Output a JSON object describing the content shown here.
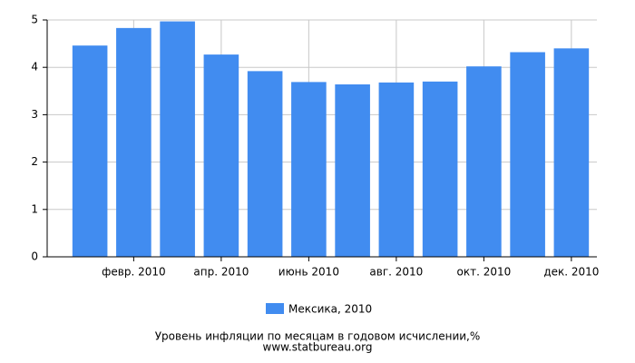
{
  "chart_data": {
    "type": "bar",
    "categories": [
      null,
      "февр. 2010",
      null,
      "апр. 2010",
      null,
      "июнь 2010",
      null,
      "авг. 2010",
      null,
      "окт. 2010",
      null,
      "дек. 2010"
    ],
    "series": [
      {
        "name": "Мексика, 2010",
        "color": "#418cf0",
        "values": [
          4.46,
          4.83,
          4.97,
          4.27,
          3.92,
          3.69,
          3.64,
          3.68,
          3.7,
          4.02,
          4.32,
          4.4
        ]
      }
    ],
    "ylim": [
      0,
      5
    ],
    "yticks": [
      0,
      1,
      2,
      3,
      4,
      5
    ],
    "grid": true,
    "caption": "Уровень инфляции по месяцам в годовом исчислении,%",
    "source": "www.statbureau.org"
  }
}
